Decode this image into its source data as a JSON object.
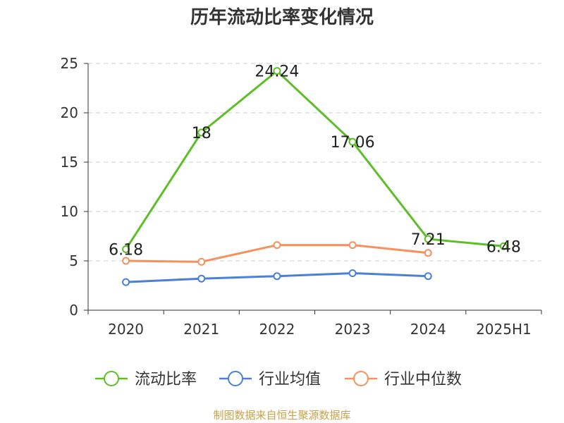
{
  "chart_data": {
    "type": "line",
    "title": "历年流动比率变化情况",
    "categories": [
      "2020",
      "2021",
      "2022",
      "2023",
      "2024",
      "2025H1"
    ],
    "ylim": [
      0,
      25
    ],
    "yticks": [
      0,
      5,
      10,
      15,
      20,
      25
    ],
    "grid": true,
    "legend_position": "bottom",
    "series": [
      {
        "name": "流动比率",
        "color": "#5dbf28",
        "values": [
          6.18,
          18,
          24.24,
          17.06,
          7.21,
          6.48
        ],
        "labels": [
          "6.18",
          "18",
          "24.24",
          "17.06",
          "7.21",
          "6.48"
        ]
      },
      {
        "name": "行业均值",
        "color": "#4a7fdc",
        "values": [
          2.85,
          3.2,
          3.45,
          3.75,
          3.45,
          null
        ]
      },
      {
        "name": "行业中位数",
        "color": "#f7915c",
        "values": [
          5.0,
          4.9,
          6.6,
          6.6,
          5.8,
          null
        ]
      }
    ]
  },
  "footer": {
    "source": "制图数据来自恒生聚源数据库"
  }
}
